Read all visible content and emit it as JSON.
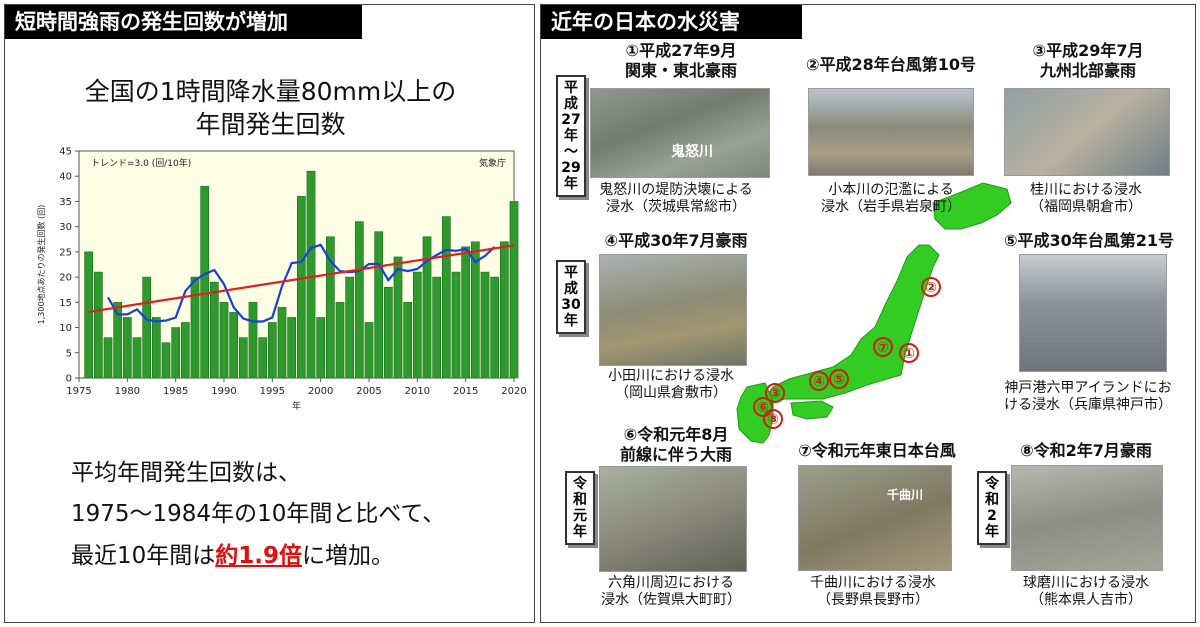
{
  "left": {
    "header": "短時間強雨の発生回数が増加",
    "chart_title_line1": "全国の1時間降水量80mm以上の",
    "chart_title_line2": "年間発生回数",
    "summary_line1": "平均年間発生回数は、",
    "summary_line2": "1975～1984年の10年間と比べて、",
    "summary_line3_pre": "最近10年間は",
    "summary_line3_highlight": "約1.9倍",
    "summary_line3_post": "に増加。"
  },
  "chart_data": {
    "type": "bar",
    "trend_label": "トレンド=3.0 (回/10年)",
    "source_label": "気象庁",
    "ylabel": "1,300地点あたりの発生回数 (回)",
    "xlabel": "年",
    "xlim": [
      1975,
      2020
    ],
    "ylim": [
      0,
      45
    ],
    "x_ticks": [
      1975,
      1980,
      1985,
      1990,
      1995,
      2000,
      2005,
      2010,
      2015,
      2020
    ],
    "y_ticks": [
      0,
      5,
      10,
      15,
      20,
      25,
      30,
      35,
      40,
      45
    ],
    "years": [
      1976,
      1977,
      1978,
      1979,
      1980,
      1981,
      1982,
      1983,
      1984,
      1985,
      1986,
      1987,
      1988,
      1989,
      1990,
      1991,
      1992,
      1993,
      1994,
      1995,
      1996,
      1997,
      1998,
      1999,
      2000,
      2001,
      2002,
      2003,
      2004,
      2005,
      2006,
      2007,
      2008,
      2009,
      2010,
      2011,
      2012,
      2013,
      2014,
      2015,
      2016,
      2017,
      2018,
      2019,
      2020
    ],
    "values": [
      25,
      21,
      8,
      15,
      12,
      8,
      20,
      12,
      7,
      10,
      11,
      20,
      38,
      19,
      15,
      13,
      8,
      15,
      8,
      11,
      14,
      12,
      36,
      41,
      12,
      28,
      15,
      20,
      31,
      11,
      29,
      18,
      24,
      15,
      21,
      28,
      20,
      32,
      21,
      26,
      27,
      21,
      20,
      27,
      35
    ],
    "moving_average": [
      [
        1978,
        16
      ],
      [
        1979,
        12.6
      ],
      [
        1980,
        12.6
      ],
      [
        1981,
        13.6
      ],
      [
        1982,
        11.6
      ],
      [
        1983,
        11.2
      ],
      [
        1984,
        11.4
      ],
      [
        1985,
        12
      ],
      [
        1986,
        17.2
      ],
      [
        1987,
        19.4
      ],
      [
        1988,
        20.6
      ],
      [
        1989,
        21.4
      ],
      [
        1990,
        18.6
      ],
      [
        1991,
        14
      ],
      [
        1992,
        11.8
      ],
      [
        1993,
        11.2
      ],
      [
        1994,
        11.2
      ],
      [
        1995,
        12
      ],
      [
        1996,
        18.2
      ],
      [
        1997,
        22.8
      ],
      [
        1998,
        23
      ],
      [
        1999,
        25.8
      ],
      [
        2000,
        26.4
      ],
      [
        2001,
        23.2
      ],
      [
        2002,
        21.2
      ],
      [
        2003,
        21
      ],
      [
        2004,
        21.2
      ],
      [
        2005,
        22.6
      ],
      [
        2006,
        22.6
      ],
      [
        2007,
        19.4
      ],
      [
        2008,
        21.6
      ],
      [
        2009,
        21.2
      ],
      [
        2010,
        21.6
      ],
      [
        2011,
        23.2
      ],
      [
        2012,
        24.4
      ],
      [
        2013,
        25.4
      ],
      [
        2014,
        25.2
      ],
      [
        2015,
        25.6
      ],
      [
        2016,
        23
      ],
      [
        2017,
        24.2
      ],
      [
        2018,
        26
      ]
    ],
    "trend_line": [
      [
        1976,
        13.1
      ],
      [
        2020,
        26.3
      ]
    ],
    "colors": {
      "bar": "#2e9a2e",
      "bar_edge": "#1d6b1d",
      "moving_average": "#1540e0",
      "trend": "#e02020",
      "plot_bg": "#ffffe6"
    }
  },
  "right": {
    "header": "近年の日本の水災害",
    "items": [
      {
        "num": "①",
        "title1": "平成27年9月",
        "title2": "関東・東北豪雨",
        "caption1": "鬼怒川の堤防決壊による",
        "caption2": "浸水（茨城県常総市）",
        "photo_label": "鬼怒川"
      },
      {
        "num": "②",
        "title1": "平成28年台風第10号",
        "caption1": "小本川の氾濫による",
        "caption2": "浸水（岩手県岩泉町）"
      },
      {
        "num": "③",
        "title1": "平成29年7月",
        "title2": "九州北部豪雨",
        "caption1": "桂川における浸水",
        "caption2": "（福岡県朝倉市）"
      },
      {
        "num": "④",
        "title1": "平成30年7月豪雨",
        "caption1": "小田川における浸水",
        "caption2": "（岡山県倉敷市）"
      },
      {
        "num": "⑤",
        "title1": "平成30年台風第21号",
        "caption1": "神戸港六甲アイランドにお",
        "caption2": "ける浸水（兵庫県神戸市）"
      },
      {
        "num": "⑥",
        "title1": "令和元年8月",
        "title2": "前線に伴う大雨",
        "caption1": "六角川周辺における",
        "caption2": "浸水（佐賀県大町町）"
      },
      {
        "num": "⑦",
        "title1": "令和元年東日本台風",
        "caption1": "千曲川における浸水",
        "caption2": "（長野県長野市）",
        "photo_label": "千曲川"
      },
      {
        "num": "⑧",
        "title1": "令和2年7月豪雨",
        "caption1": "球磨川における浸水",
        "caption2": "（熊本県人吉市）"
      }
    ],
    "era_labels": [
      {
        "lines": [
          "平",
          "成",
          "27",
          "年",
          "～",
          "29",
          "年"
        ]
      },
      {
        "lines": [
          "平",
          "成",
          "30",
          "年"
        ]
      },
      {
        "lines": [
          "令",
          "和",
          "元",
          "年"
        ]
      },
      {
        "lines": [
          "令",
          "和",
          "2",
          "年"
        ]
      }
    ],
    "map_markers": [
      "②",
      "⑦",
      "①",
      "④",
      "⑤",
      "③",
      "⑥",
      "⑧"
    ],
    "colors": {
      "map_green": "#33cc22",
      "marker_ring": "#cc2211"
    }
  }
}
